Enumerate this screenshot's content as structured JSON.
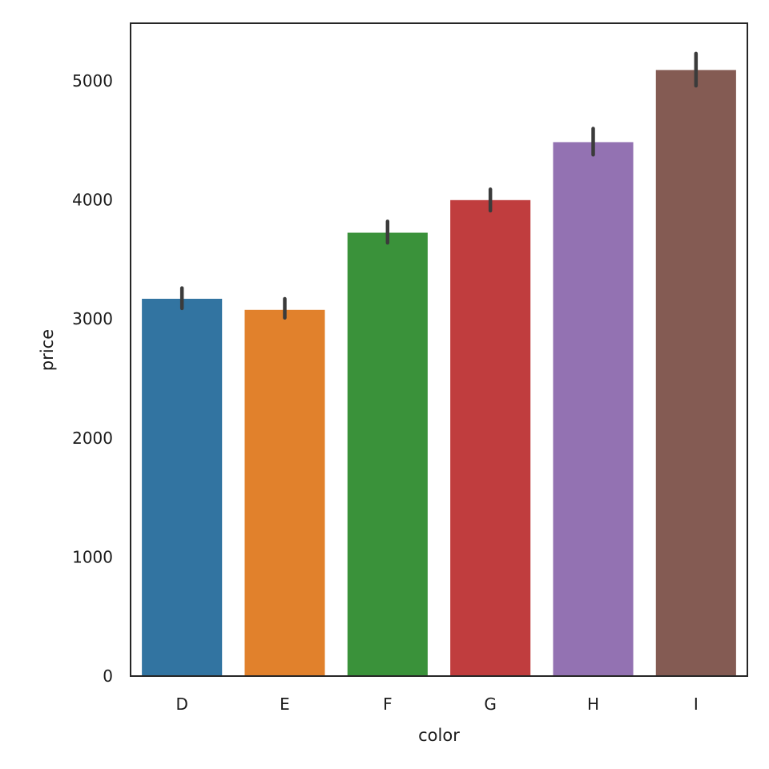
{
  "chart_data": {
    "type": "bar",
    "title": "",
    "xlabel": "color",
    "ylabel": "price",
    "categories": [
      "D",
      "E",
      "F",
      "G",
      "H",
      "I"
    ],
    "values": [
      3170,
      3077,
      3725,
      3999,
      4486,
      5092
    ],
    "error_low": [
      3090,
      3010,
      3640,
      3910,
      4380,
      4960
    ],
    "error_high": [
      3260,
      3170,
      3820,
      4090,
      4600,
      5230
    ],
    "colors": [
      "#3274a1",
      "#e1812c",
      "#3a923a",
      "#c03d3e",
      "#9372b2",
      "#845b53"
    ],
    "error_color": "#3b3b3b",
    "ylim": [
      0,
      5485
    ],
    "yticks": [
      0,
      1000,
      2000,
      3000,
      4000,
      5000
    ],
    "ytick_labels": [
      "0",
      "1000",
      "2000",
      "3000",
      "4000",
      "5000"
    ],
    "grid": false,
    "legend": "none"
  }
}
